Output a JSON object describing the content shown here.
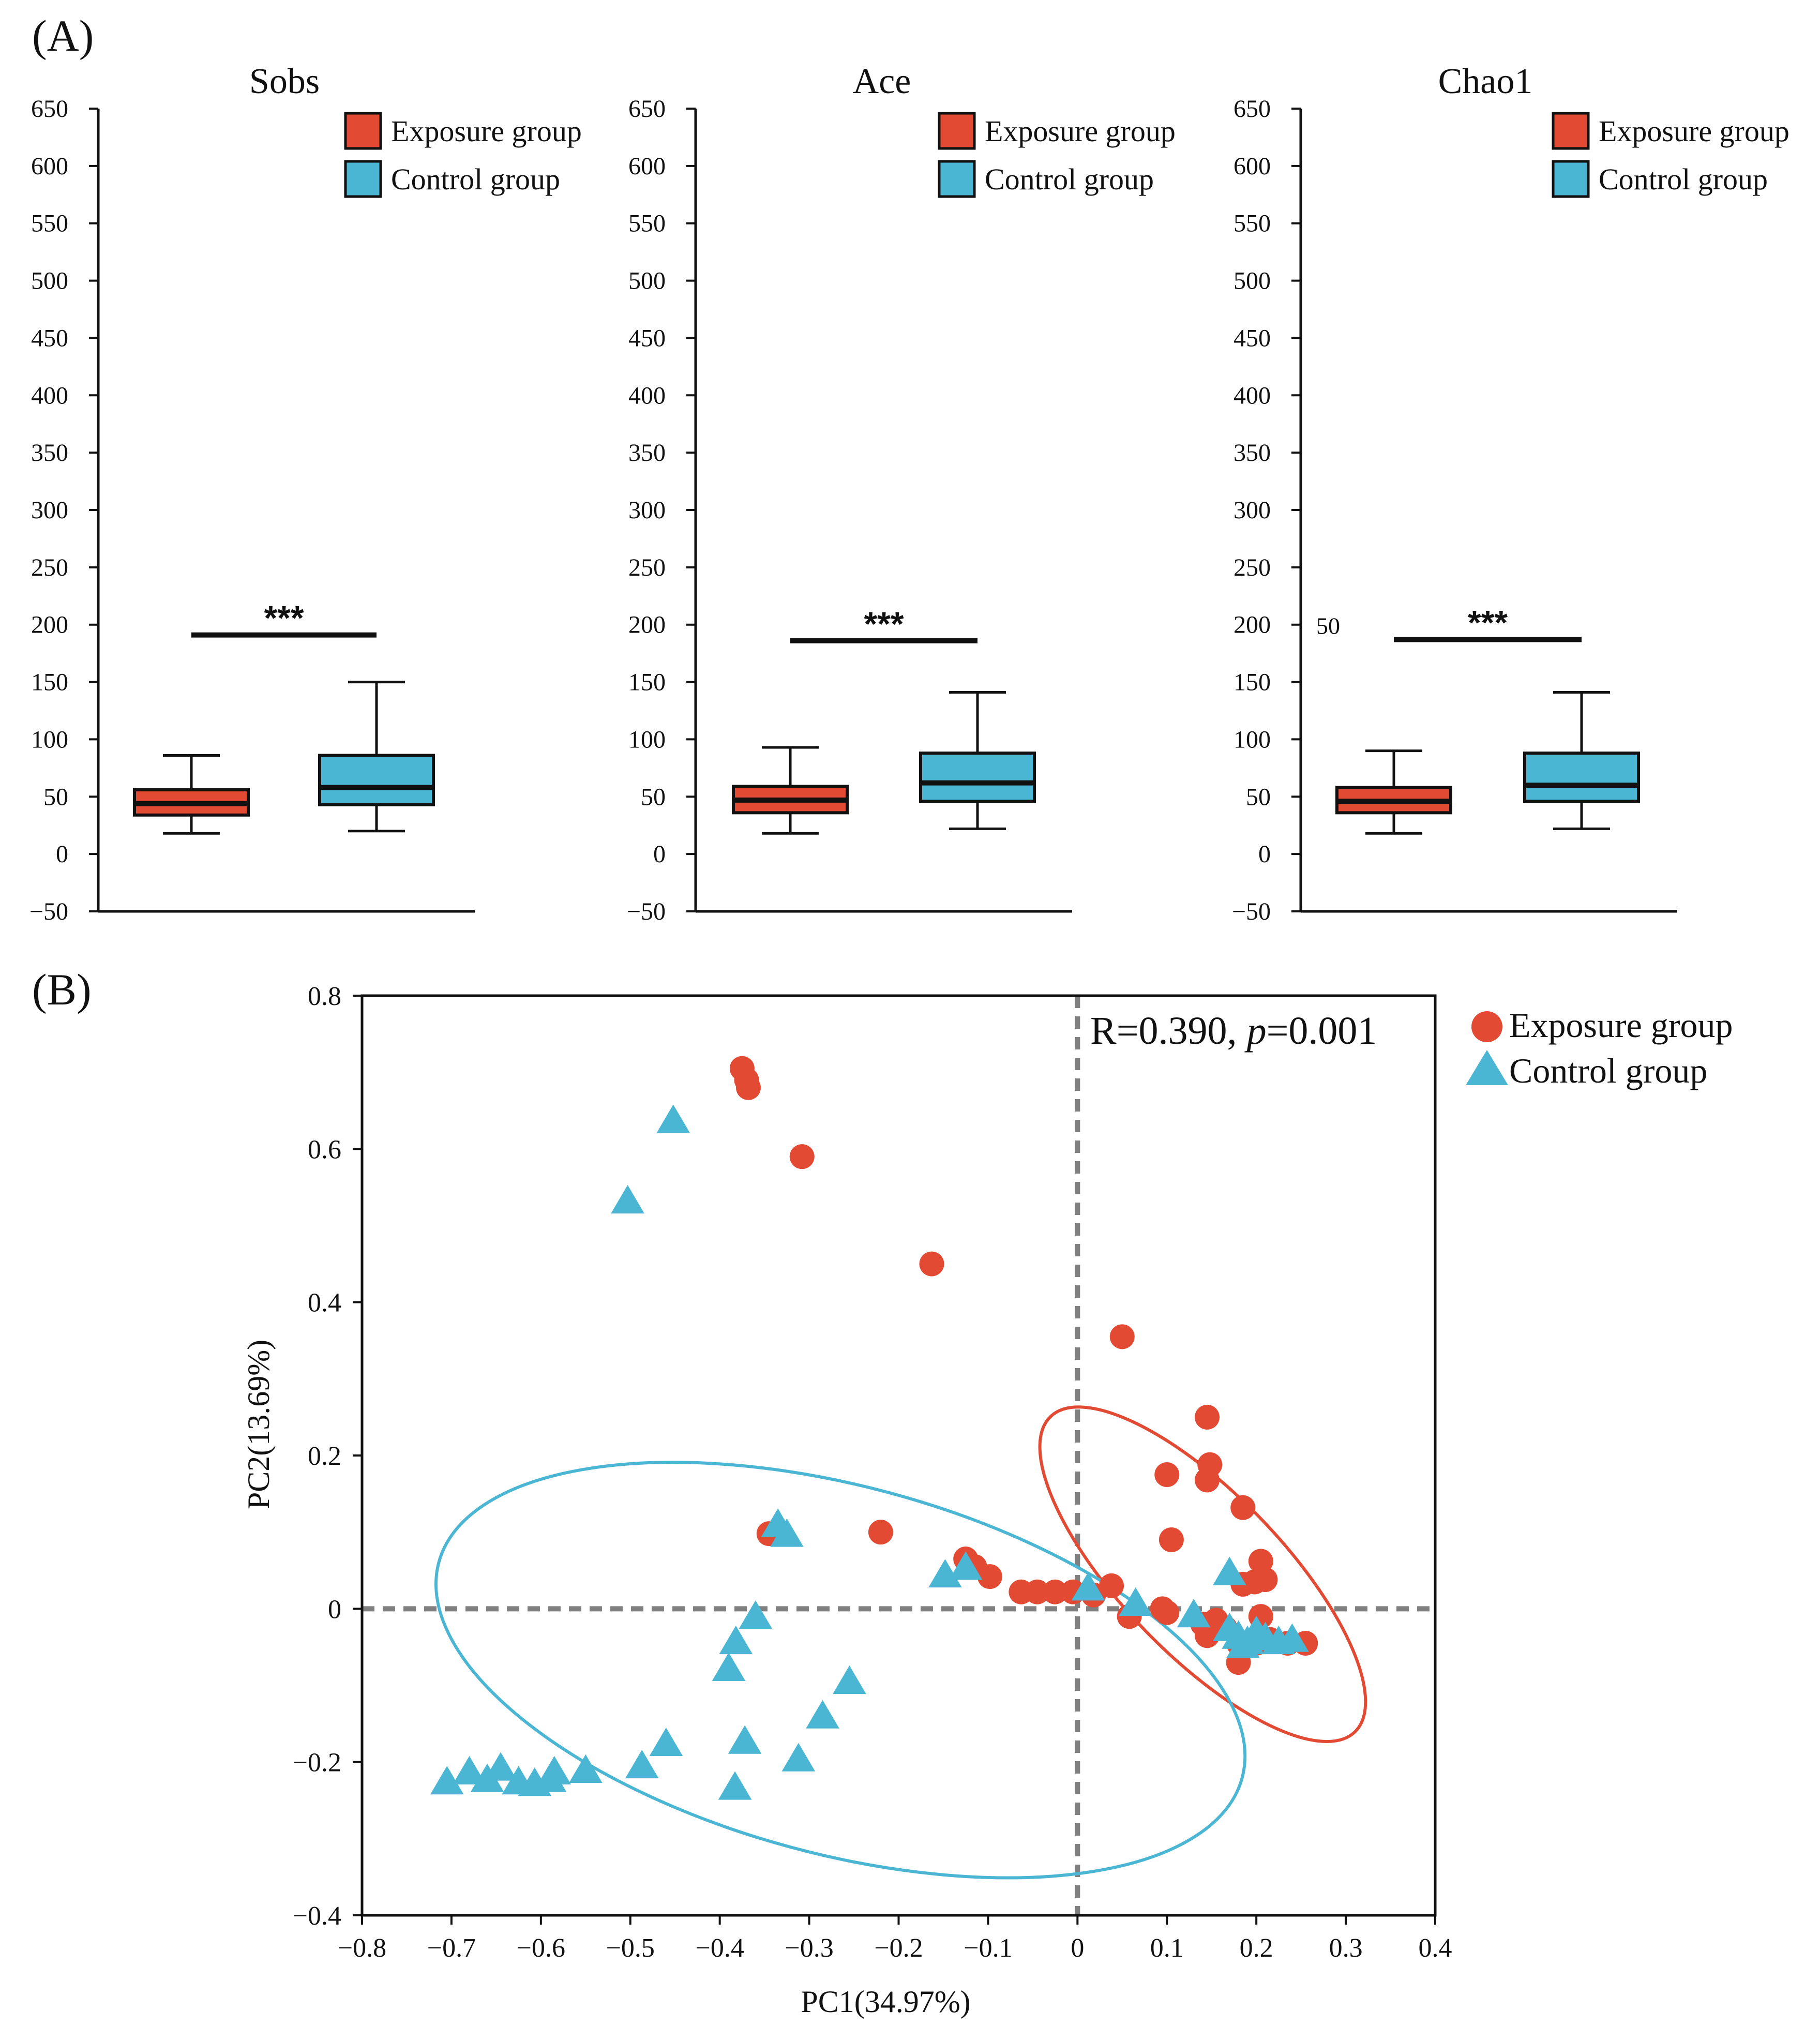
{
  "colors": {
    "exposure": "#E24A33",
    "control": "#4BB6D3",
    "axis": "#111111",
    "refline": "#808080"
  },
  "chart_data": [
    {
      "panel_label": "(A)",
      "type": "box",
      "title": "Sobs",
      "ylim": [
        -50,
        650
      ],
      "yticks": [
        "650",
        "600",
        "550",
        "500",
        "450",
        "400",
        "350",
        "300",
        "250",
        "200",
        "150",
        "100",
        "50",
        "0",
        "−50"
      ],
      "ytick_values": [
        650,
        600,
        550,
        500,
        450,
        400,
        350,
        300,
        250,
        200,
        150,
        100,
        50,
        0,
        -50
      ],
      "legend": [
        "Exposure group",
        "Control group"
      ],
      "legend_position": "top-right",
      "significance": "***",
      "significance_level": 191,
      "boxes": [
        {
          "group": "Exposure group",
          "min": 18,
          "q1": 34,
          "median": 44,
          "q3": 56,
          "max": 86
        },
        {
          "group": "Control group",
          "min": 20,
          "q1": 43,
          "median": 58,
          "q3": 86,
          "max": 150
        }
      ]
    },
    {
      "type": "box",
      "title": "Ace",
      "ylim": [
        -50,
        650
      ],
      "yticks": [
        "650",
        "600",
        "550",
        "500",
        "450",
        "400",
        "350",
        "300",
        "250",
        "200",
        "150",
        "100",
        "50",
        "0",
        "−50"
      ],
      "ytick_values": [
        650,
        600,
        550,
        500,
        450,
        400,
        350,
        300,
        250,
        200,
        150,
        100,
        50,
        0,
        -50
      ],
      "legend": [
        "Exposure group",
        "Control group"
      ],
      "legend_position": "top-right",
      "significance": "***",
      "significance_level": 186,
      "boxes": [
        {
          "group": "Exposure group",
          "min": 18,
          "q1": 36,
          "median": 47,
          "q3": 59,
          "max": 93
        },
        {
          "group": "Control group",
          "min": 22,
          "q1": 46,
          "median": 62,
          "q3": 88,
          "max": 141
        }
      ]
    },
    {
      "type": "box",
      "title": "Chao1",
      "ylim": [
        -50,
        650
      ],
      "yticks": [
        "650",
        "600",
        "550",
        "500",
        "450",
        "400",
        "350",
        "300",
        "250",
        "200",
        "150",
        "100",
        "50",
        "0",
        "−50"
      ],
      "ytick_values": [
        650,
        600,
        550,
        500,
        450,
        400,
        350,
        300,
        250,
        200,
        150,
        100,
        50,
        0,
        -50
      ],
      "stray_label": "50",
      "legend": [
        "Exposure group",
        "Control group"
      ],
      "legend_position": "top-right",
      "significance": "***",
      "significance_level": 187,
      "boxes": [
        {
          "group": "Exposure group",
          "min": 18,
          "q1": 36,
          "median": 46,
          "q3": 58,
          "max": 90
        },
        {
          "group": "Control group",
          "min": 22,
          "q1": 46,
          "median": 60,
          "q3": 88,
          "max": 141
        }
      ]
    },
    {
      "panel_label": "(B)",
      "type": "scatter",
      "xlabel": "PC1(34.97%)",
      "ylabel": "PC2(13.69%)",
      "xlim": [
        -0.8,
        0.4
      ],
      "ylim": [
        -0.4,
        0.8
      ],
      "xticks": [
        "−0.8",
        "−0.7",
        "−0.6",
        "−0.5",
        "−0.4",
        "−0.3",
        "−0.2",
        "−0.1",
        "0",
        "0.1",
        "0.2",
        "0.3",
        "0.4"
      ],
      "xtick_values": [
        -0.8,
        -0.7,
        -0.6,
        -0.5,
        -0.4,
        -0.3,
        -0.2,
        -0.1,
        0,
        0.1,
        0.2,
        0.3,
        0.4
      ],
      "yticks": [
        "0.8",
        "0.6",
        "0.4",
        "0.2",
        "0",
        "−0.2",
        "−0.4"
      ],
      "ytick_values": [
        0.8,
        0.6,
        0.4,
        0.2,
        0,
        -0.2,
        -0.4
      ],
      "annotation_prefix": "R=0.390, ",
      "annotation_p": "p",
      "annotation_suffix": "=0.001",
      "legend": [
        "Exposure group",
        "Control group"
      ],
      "legend_position": "top-right, outside",
      "series": [
        {
          "name": "Exposure group",
          "marker": "circle",
          "points": [
            [
              -0.375,
              0.705
            ],
            [
              -0.37,
              0.69
            ],
            [
              -0.368,
              0.68
            ],
            [
              -0.308,
              0.59
            ],
            [
              -0.163,
              0.45
            ],
            [
              0.05,
              0.355
            ],
            [
              0.145,
              0.25
            ],
            [
              0.148,
              0.188
            ],
            [
              0.145,
              0.168
            ],
            [
              0.1,
              0.175
            ],
            [
              0.185,
              0.132
            ],
            [
              0.105,
              0.09
            ],
            [
              -0.345,
              0.098
            ],
            [
              -0.22,
              0.1
            ],
            [
              -0.125,
              0.065
            ],
            [
              -0.115,
              0.055
            ],
            [
              -0.098,
              0.042
            ],
            [
              -0.063,
              0.022
            ],
            [
              -0.045,
              0.022
            ],
            [
              -0.025,
              0.022
            ],
            [
              -0.005,
              0.022
            ],
            [
              0.018,
              0.018
            ],
            [
              0.038,
              0.03
            ],
            [
              0.205,
              0.062
            ],
            [
              0.198,
              0.035
            ],
            [
              0.21,
              0.038
            ],
            [
              0.185,
              0.032
            ],
            [
              0.095,
              0.0
            ],
            [
              0.1,
              -0.005
            ],
            [
              0.058,
              -0.01
            ],
            [
              0.14,
              -0.02
            ],
            [
              0.155,
              -0.015
            ],
            [
              0.165,
              -0.025
            ],
            [
              0.205,
              -0.01
            ],
            [
              0.145,
              -0.035
            ],
            [
              0.18,
              -0.045
            ],
            [
              0.2,
              -0.045
            ],
            [
              0.215,
              -0.04
            ],
            [
              0.235,
              -0.045
            ],
            [
              0.255,
              -0.045
            ],
            [
              0.18,
              -0.07
            ]
          ]
        },
        {
          "name": "Control group",
          "marker": "triangle",
          "points": [
            [
              -0.452,
              0.635
            ],
            [
              -0.503,
              0.53
            ],
            [
              -0.335,
              0.108
            ],
            [
              -0.325,
              0.095
            ],
            [
              -0.148,
              0.042
            ],
            [
              -0.125,
              0.052
            ],
            [
              0.012,
              0.025
            ],
            [
              0.065,
              0.005
            ],
            [
              0.17,
              0.045
            ],
            [
              0.13,
              -0.01
            ],
            [
              -0.36,
              -0.012
            ],
            [
              -0.382,
              -0.045
            ],
            [
              -0.39,
              -0.08
            ],
            [
              -0.255,
              -0.097
            ],
            [
              -0.285,
              -0.142
            ],
            [
              -0.46,
              -0.178
            ],
            [
              -0.372,
              -0.175
            ],
            [
              -0.312,
              -0.198
            ],
            [
              -0.487,
              -0.207
            ],
            [
              -0.383,
              -0.235
            ],
            [
              -0.705,
              -0.228
            ],
            [
              -0.68,
              -0.215
            ],
            [
              -0.66,
              -0.225
            ],
            [
              -0.645,
              -0.21
            ],
            [
              -0.625,
              -0.228
            ],
            [
              -0.607,
              -0.23
            ],
            [
              -0.59,
              -0.225
            ],
            [
              -0.585,
              -0.215
            ],
            [
              -0.55,
              -0.213
            ],
            [
              0.17,
              -0.028
            ],
            [
              0.18,
              -0.038
            ],
            [
              0.19,
              -0.045
            ],
            [
              0.2,
              -0.032
            ],
            [
              0.21,
              -0.04
            ],
            [
              0.225,
              -0.045
            ],
            [
              0.24,
              -0.042
            ],
            [
              0.185,
              -0.05
            ]
          ]
        }
      ],
      "ellipses": [
        {
          "group": "Exposure group",
          "center": [
            0.14,
            0.045
          ],
          "semi_axes": [
            0.245,
            0.105
          ],
          "angle_deg": 46
        },
        {
          "group": "Control group",
          "center": [
            -0.265,
            -0.08
          ],
          "semi_axes": [
            0.465,
            0.24
          ],
          "angle_deg": 15
        }
      ]
    }
  ]
}
